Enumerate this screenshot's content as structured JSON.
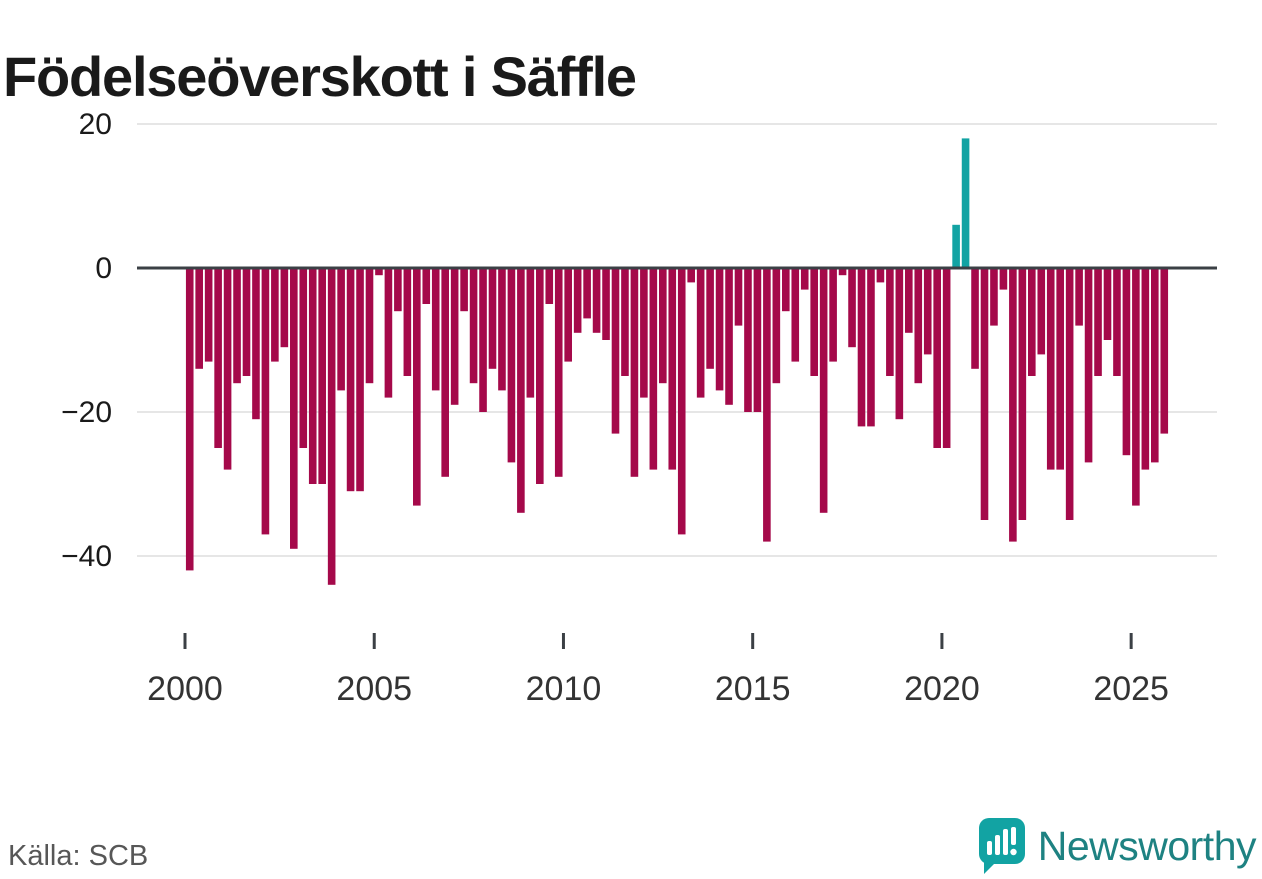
{
  "title": "Födelseöverskott i Säffle",
  "footer": {
    "source_label": "Källa: SCB"
  },
  "brand": {
    "name": "Newsworthy",
    "icon": "bar-chart-speech-bubble",
    "wordmark_color": "#1e8282",
    "icon_color": "#12a3a3"
  },
  "colors": {
    "negative_bar": "#a5094a",
    "positive_bar": "#12a3a3",
    "axis": "#3b4045",
    "grid": "#e6e6e6",
    "y_label_text": "#1a1a1a",
    "x_label_text": "#333333",
    "source_text": "#575757"
  },
  "chart_data": {
    "type": "bar",
    "title": "Födelseöverskott i Säffle",
    "xlabel": "",
    "ylabel": "",
    "x_start": "2000-Q1",
    "x_end": "2025-Q4",
    "frequency": "quarterly",
    "values": [
      -42,
      -14,
      -13,
      -25,
      -28,
      -16,
      -15,
      -21,
      -37,
      -13,
      -11,
      -39,
      -25,
      -30,
      -30,
      -44,
      -17,
      -31,
      -31,
      -16,
      -1,
      -18,
      -6,
      -15,
      -33,
      -5,
      -17,
      -29,
      -19,
      -6,
      -16,
      -20,
      -14,
      -17,
      -27,
      -34,
      -18,
      -30,
      -5,
      -29,
      -13,
      -9,
      -7,
      -9,
      -10,
      -23,
      -15,
      -29,
      -18,
      -28,
      -16,
      -28,
      -37,
      -2,
      -18,
      -14,
      -17,
      -19,
      -8,
      -20,
      -20,
      -38,
      -16,
      -6,
      -13,
      -3,
      -15,
      -34,
      -13,
      -1,
      -11,
      -22,
      -22,
      -2,
      -15,
      -21,
      -9,
      -16,
      -12,
      -25,
      -25,
      6,
      18,
      -14,
      -35,
      -8,
      -3,
      -38,
      -35,
      -15,
      -12,
      -28,
      -28,
      -35,
      -8,
      -27,
      -15,
      -10,
      -15,
      -26,
      -33,
      -28,
      -27,
      -23
    ],
    "yticks": [
      "20",
      "0",
      "−20",
      "−40"
    ],
    "ytick_values": [
      20,
      0,
      -20,
      -40
    ],
    "xticks": [
      "2000",
      "2005",
      "2010",
      "2015",
      "2020",
      "2025"
    ],
    "ylim": [
      -46,
      22
    ],
    "grid": true,
    "legend": "none",
    "colors": {
      "negative": "#a5094a",
      "positive": "#12a3a3"
    }
  }
}
